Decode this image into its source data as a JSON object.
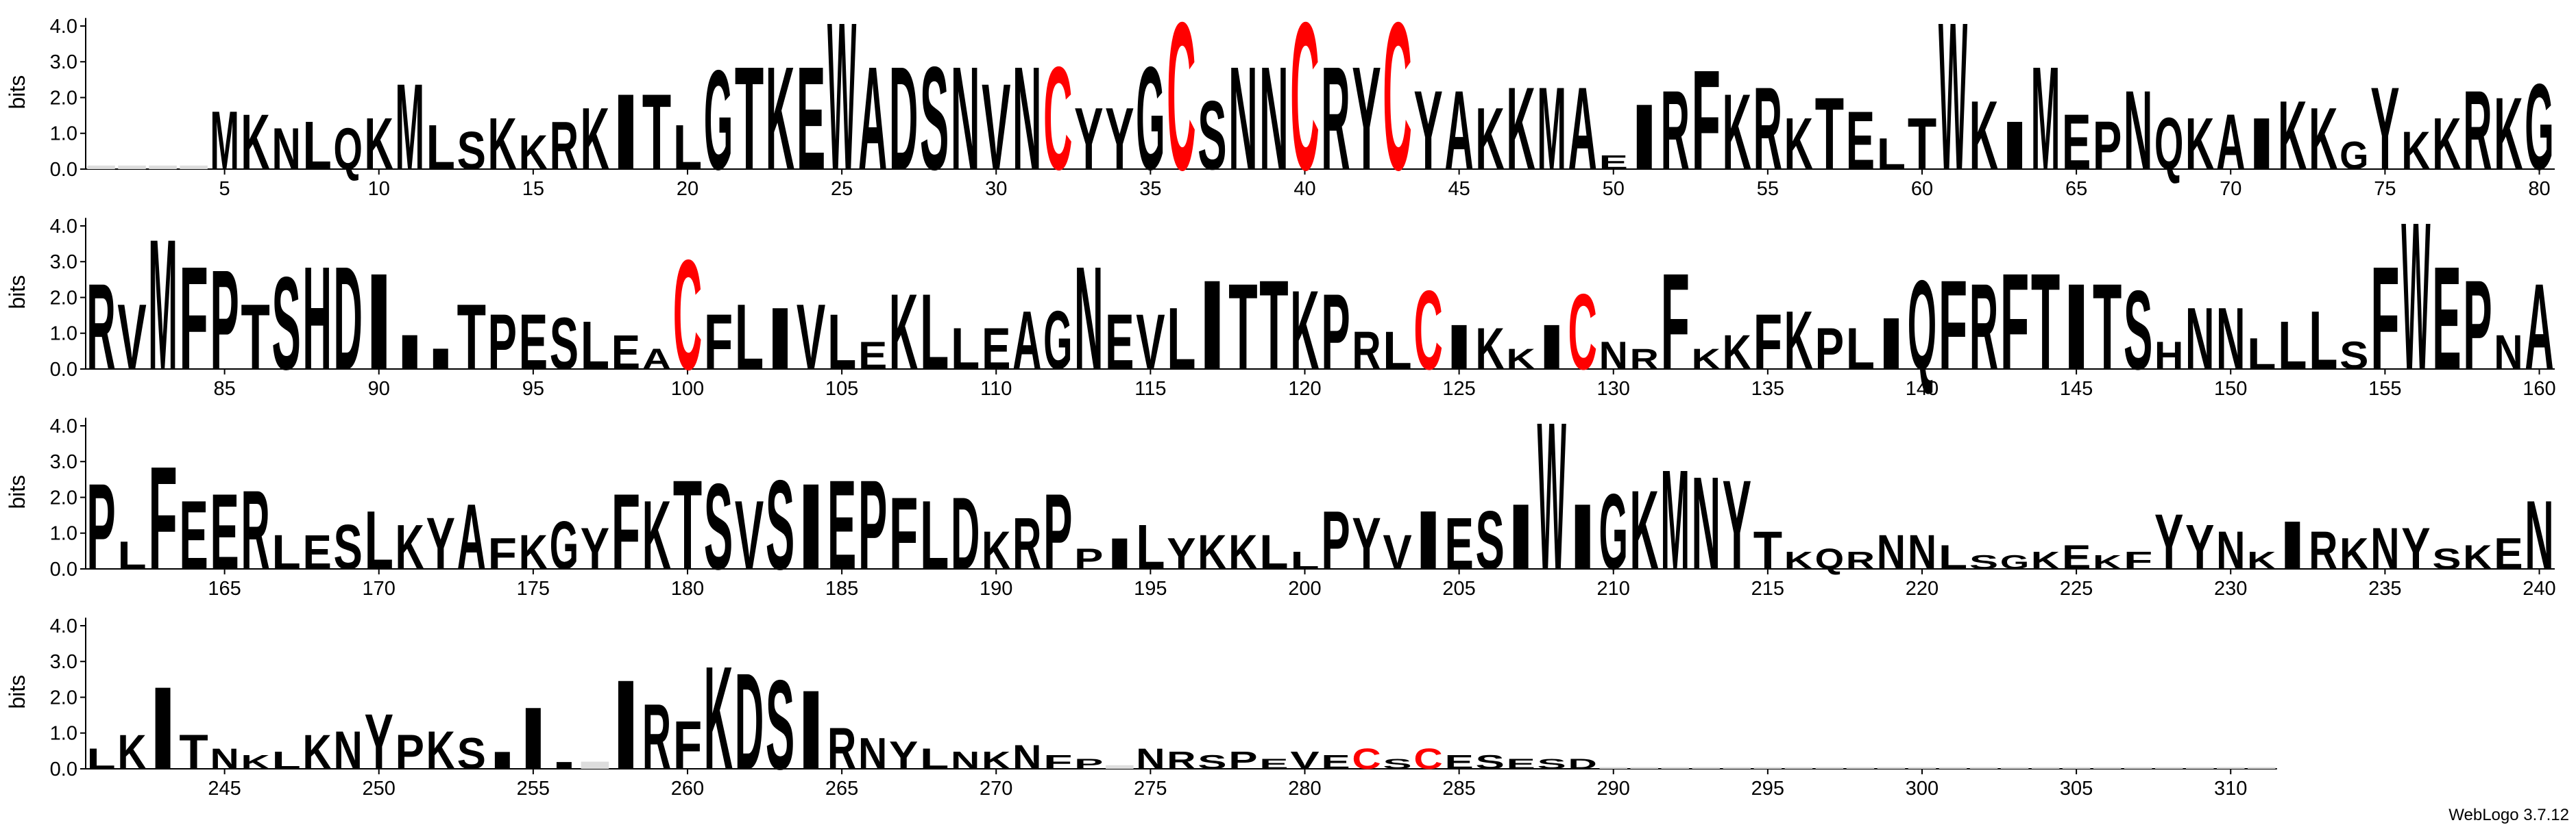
{
  "chart_data": {
    "type": "logo",
    "y_label": "bits",
    "credit": "WebLogo 3.7.12",
    "color": "#000000",
    "highlight": {
      "letter": "C",
      "color": "#ff0000"
    },
    "ylim": [
      0,
      4.3
    ],
    "yticks": [
      {
        "value": 0,
        "label": "0.0"
      },
      {
        "value": 1,
        "label": "1.0"
      },
      {
        "value": 2,
        "label": "2.0"
      },
      {
        "value": 3,
        "label": "3.0"
      },
      {
        "value": 4,
        "label": "4.0"
      }
    ],
    "panels": [
      {
        "xlim": [
          0.5,
          80.5
        ],
        "xticks": [
          5,
          10,
          15,
          20,
          25,
          30,
          35,
          40,
          45,
          50,
          55,
          60,
          65,
          70,
          75,
          80
        ]
      },
      {
        "xlim": [
          80.5,
          160.5
        ],
        "xticks": [
          85,
          90,
          95,
          100,
          105,
          110,
          115,
          120,
          125,
          130,
          135,
          140,
          145,
          150,
          155,
          160
        ]
      },
      {
        "xlim": [
          160.5,
          240.5
        ],
        "xticks": [
          165,
          170,
          175,
          180,
          185,
          190,
          195,
          200,
          205,
          210,
          215,
          220,
          225,
          230,
          235,
          240
        ]
      },
      {
        "xlim": [
          240.5,
          320.5
        ],
        "xticks": [
          245,
          250,
          255,
          260,
          265,
          270,
          275,
          280,
          285,
          290,
          295,
          300,
          305,
          310
        ]
      }
    ],
    "x": [
      1,
      2,
      3,
      4,
      5,
      6,
      7,
      8,
      9,
      10,
      11,
      12,
      13,
      14,
      15,
      16,
      17,
      18,
      19,
      20,
      21,
      22,
      23,
      24,
      25,
      26,
      27,
      28,
      29,
      30,
      31,
      32,
      33,
      34,
      35,
      36,
      37,
      38,
      39,
      40,
      41,
      42,
      43,
      44,
      45,
      46,
      47,
      48,
      49,
      50,
      51,
      52,
      53,
      54,
      55,
      56,
      57,
      58,
      59,
      60,
      61,
      62,
      63,
      64,
      65,
      66,
      67,
      68,
      69,
      70,
      71,
      72,
      73,
      74,
      75,
      76,
      77,
      78,
      79,
      80,
      81,
      82,
      83,
      84,
      85,
      86,
      87,
      88,
      89,
      90,
      91,
      92,
      93,
      94,
      95,
      96,
      97,
      98,
      99,
      100,
      101,
      102,
      103,
      104,
      105,
      106,
      107,
      108,
      109,
      110,
      111,
      112,
      113,
      114,
      115,
      116,
      117,
      118,
      119,
      120,
      121,
      122,
      123,
      124,
      125,
      126,
      127,
      128,
      129,
      130,
      131,
      132,
      133,
      134,
      135,
      136,
      137,
      138,
      139,
      140,
      141,
      142,
      143,
      144,
      145,
      146,
      147,
      148,
      149,
      150,
      151,
      152,
      153,
      154,
      155,
      156,
      157,
      158,
      159,
      160,
      161,
      162,
      163,
      164,
      165,
      166,
      167,
      168,
      169,
      170,
      171,
      172,
      173,
      174,
      175,
      176,
      177,
      178,
      179,
      180,
      181,
      182,
      183,
      184,
      185,
      186,
      187,
      188,
      189,
      190,
      191,
      192,
      193,
      194,
      195,
      196,
      197,
      198,
      199,
      200,
      201,
      202,
      203,
      204,
      205,
      206,
      207,
      208,
      209,
      210,
      211,
      212,
      213,
      214,
      215,
      216,
      217,
      218,
      219,
      220,
      221,
      222,
      223,
      224,
      225,
      226,
      227,
      228,
      229,
      230,
      231,
      232,
      233,
      234,
      235,
      236,
      237,
      238,
      239,
      240,
      241,
      242,
      243,
      244,
      245,
      246,
      247,
      248,
      249,
      250,
      251,
      252,
      253,
      254,
      255,
      256,
      257,
      258,
      259,
      260,
      261,
      262,
      263,
      264,
      265,
      266,
      267,
      268,
      269,
      270,
      271,
      272,
      273,
      274,
      275,
      276,
      277,
      278,
      279,
      280,
      281,
      282,
      283,
      284,
      285,
      286,
      287,
      288,
      289,
      290,
      291,
      292,
      293,
      294,
      295,
      296,
      297,
      298,
      299,
      300,
      301,
      302,
      303,
      304,
      305,
      306,
      307,
      308,
      309,
      310,
      311
    ],
    "letters": [
      null,
      null,
      null,
      null,
      "M",
      "K",
      "N",
      "L",
      "Q",
      "K",
      "M",
      "L",
      "S",
      "K",
      "K",
      "R",
      "K",
      "I",
      "T",
      "L",
      "G",
      "T",
      "K",
      "E",
      "W",
      "A",
      "D",
      "S",
      "N",
      "V",
      "N",
      "C",
      "Y",
      "Y",
      "G",
      "C",
      "S",
      "N",
      "N",
      "C",
      "R",
      "Y",
      "C",
      "Y",
      "A",
      "K",
      "K",
      "M",
      "A",
      "E",
      "I",
      "R",
      "F",
      "K",
      "R",
      "K",
      "T",
      "E",
      "L",
      "T",
      "W",
      "K",
      "I",
      "M",
      "E",
      "P",
      "N",
      "Q",
      "K",
      "A",
      "I",
      "K",
      "K",
      "G",
      "Y",
      "K",
      "K",
      "R",
      "K",
      "G",
      "R",
      "V",
      "M",
      "F",
      "P",
      "T",
      "S",
      "H",
      "D",
      "I",
      "I",
      "I",
      "T",
      "P",
      "E",
      "S",
      "L",
      "E",
      "A",
      "C",
      "F",
      "L",
      "I",
      "V",
      "L",
      "E",
      "K",
      "L",
      "L",
      "E",
      "A",
      "G",
      "N",
      "E",
      "V",
      "L",
      "I",
      "T",
      "T",
      "K",
      "P",
      "R",
      "L",
      "C",
      "I",
      "K",
      "K",
      "I",
      "C",
      "N",
      "R",
      "F",
      "K",
      "K",
      "F",
      "K",
      "P",
      "L",
      "I",
      "Q",
      "F",
      "R",
      "F",
      "T",
      "I",
      "T",
      "S",
      "H",
      "N",
      "N",
      "L",
      "L",
      "L",
      "S",
      "F",
      "W",
      "E",
      "P",
      "N",
      "A",
      "P",
      "L",
      "F",
      "E",
      "E",
      "R",
      "L",
      "E",
      "S",
      "L",
      "K",
      "Y",
      "A",
      "F",
      "K",
      "G",
      "Y",
      "F",
      "K",
      "T",
      "S",
      "V",
      "S",
      "I",
      "E",
      "P",
      "F",
      "L",
      "D",
      "K",
      "R",
      "P",
      "P",
      "I",
      "L",
      "Y",
      "K",
      "K",
      "L",
      "L",
      "P",
      "Y",
      "V",
      "I",
      "E",
      "S",
      "I",
      "W",
      "I",
      "G",
      "K",
      "M",
      "N",
      "Y",
      "T",
      "K",
      "Q",
      "R",
      "N",
      "N",
      "L",
      "S",
      "G",
      "K",
      "E",
      "K",
      "F",
      "Y",
      "Y",
      "N",
      "K",
      "I",
      "R",
      "K",
      "N",
      "Y",
      "S",
      "K",
      "E",
      "N",
      "L",
      "K",
      "I",
      "T",
      "N",
      "K",
      "L",
      "K",
      "N",
      "Y",
      "P",
      "K",
      "S",
      "I",
      "I",
      "I",
      null,
      "I",
      "R",
      "F",
      "K",
      "D",
      "S",
      "I",
      "R",
      "N",
      "Y",
      "L",
      "N",
      "K",
      "N",
      "F",
      "P",
      null,
      "N",
      "R",
      "S",
      "P",
      "E",
      "V",
      "E",
      "C",
      "S",
      "C",
      "E",
      "S",
      "E",
      "S",
      "D",
      null,
      null,
      null,
      null,
      null,
      null,
      null,
      null,
      null,
      null,
      null,
      null,
      null,
      null,
      null,
      null,
      null,
      null,
      null,
      null,
      null,
      null
    ],
    "values": [
      0.1,
      0.1,
      0.1,
      0.1,
      1.7,
      1.6,
      1.2,
      1.4,
      1.2,
      1.5,
      2.5,
      1.3,
      1.1,
      1.5,
      1.0,
      1.4,
      1.8,
      2.2,
      2.2,
      1.3,
      2.9,
      3.0,
      3.0,
      3.0,
      4.3,
      3.0,
      3.0,
      3.0,
      3.0,
      2.5,
      3.0,
      3.0,
      1.8,
      1.8,
      3.0,
      4.3,
      2.0,
      3.0,
      3.0,
      4.3,
      3.0,
      3.0,
      4.3,
      2.3,
      2.3,
      1.8,
      2.4,
      2.4,
      2.4,
      0.4,
      1.9,
      2.3,
      2.9,
      2.2,
      2.4,
      1.5,
      2.1,
      1.7,
      0.9,
      1.5,
      4.3,
      2.0,
      1.4,
      3.0,
      1.6,
      1.4,
      2.3,
      1.5,
      1.5,
      1.6,
      1.5,
      2.0,
      1.8,
      0.8,
      2.4,
      1.1,
      1.5,
      2.3,
      2.1,
      2.5,
      2.5,
      1.9,
      3.8,
      3.0,
      2.9,
      1.9,
      2.7,
      3.0,
      3.0,
      2.8,
      1.0,
      0.6,
      1.9,
      1.6,
      1.6,
      1.5,
      1.4,
      1.0,
      0.6,
      3.2,
      1.6,
      1.9,
      1.8,
      1.9,
      1.6,
      0.8,
      2.2,
      2.2,
      1.2,
      1.2,
      1.7,
      1.7,
      3.0,
      1.6,
      1.6,
      1.8,
      2.6,
      2.5,
      2.6,
      2.3,
      2.2,
      1.1,
      1.1,
      2.3,
      1.3,
      1.2,
      0.6,
      1.3,
      2.2,
      0.8,
      0.6,
      2.8,
      0.6,
      1.0,
      1.6,
      1.7,
      1.2,
      1.2,
      1.5,
      2.6,
      2.6,
      2.5,
      2.8,
      2.8,
      2.5,
      2.5,
      2.3,
      0.8,
      1.8,
      1.8,
      0.9,
      1.4,
      1.7,
      0.8,
      3.0,
      4.3,
      3.0,
      2.6,
      1.0,
      2.5,
      2.5,
      0.8,
      3.0,
      2.0,
      2.2,
      2.3,
      1.0,
      1.0,
      1.3,
      1.7,
      1.3,
      1.5,
      1.9,
      0.9,
      1.0,
      1.4,
      1.2,
      2.2,
      2.0,
      2.6,
      2.5,
      2.0,
      2.6,
      2.5,
      2.6,
      2.6,
      2.1,
      2.0,
      2.1,
      1.1,
      1.5,
      2.2,
      0.6,
      0.9,
      1.3,
      0.9,
      1.0,
      1.0,
      1.0,
      0.5,
      1.7,
      1.5,
      1.0,
      1.7,
      1.5,
      1.7,
      1.9,
      4.3,
      1.9,
      2.2,
      2.3,
      2.9,
      2.7,
      2.6,
      1.1,
      0.5,
      0.6,
      0.5,
      1.0,
      1.0,
      0.7,
      0.4,
      0.4,
      0.5,
      0.7,
      0.4,
      0.5,
      1.6,
      1.3,
      1.1,
      0.5,
      1.4,
      1.1,
      0.9,
      1.2,
      1.2,
      0.6,
      0.7,
      0.9,
      2.0,
      0.6,
      1.0,
      2.4,
      1.0,
      0.6,
      0.4,
      0.5,
      1.0,
      1.1,
      1.6,
      1.0,
      1.1,
      0.9,
      0.5,
      1.8,
      0.2,
      0.2,
      2.6,
      1.9,
      1.4,
      3.0,
      2.8,
      2.6,
      2.3,
      1.2,
      0.9,
      0.8,
      0.6,
      0.5,
      0.5,
      0.7,
      0.4,
      0.3,
      0.1,
      0.6,
      0.5,
      0.4,
      0.5,
      0.3,
      0.5,
      0.4,
      0.6,
      0.3,
      0.6,
      0.4,
      0.4,
      0.3,
      0.3,
      0.3,
      0.05,
      0.05,
      0.05,
      0.05,
      0.05,
      0.05,
      0.05,
      0.05,
      0.05,
      0.05,
      0.05,
      0.05,
      0.05,
      0.05,
      0.05,
      0.05,
      0.05,
      0.05,
      0.05,
      0.05,
      0.05,
      0.05
    ]
  }
}
